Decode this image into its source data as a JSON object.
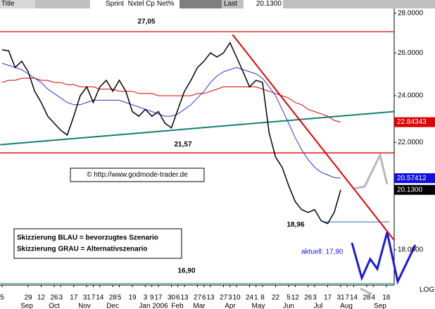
{
  "header": {
    "title": "Title",
    "symbol": "Sprint  Nxtel Cp",
    "net": "Net%",
    "last_label": "Last",
    "last_value": "20.1300"
  },
  "chart_data": {
    "type": "line",
    "log_scale": true,
    "grid": false,
    "categories": [
      "5",
      null,
      null,
      null,
      "29",
      null,
      "12",
      null,
      "26",
      "3",
      null,
      "17",
      null,
      "31",
      "7",
      "14",
      null,
      "28",
      "5",
      null,
      "19",
      null,
      "3",
      "9",
      "17",
      null,
      "30",
      "6",
      "13",
      null,
      "27",
      "6",
      "13",
      null,
      "27",
      "3",
      "10",
      null,
      "24",
      "1",
      "8",
      null,
      "22",
      null,
      "5",
      "12",
      null,
      "26",
      "3",
      null,
      "17",
      null,
      "31",
      "7",
      "14",
      null,
      "28",
      "4",
      null,
      "18"
    ],
    "months": [
      "Sep",
      "Oct",
      "Nov",
      "Dec",
      "Jan 2006",
      "Feb",
      "Mar",
      "Apr",
      "May",
      "Jun",
      "Jul",
      "Aug",
      "Sep"
    ],
    "ylim": [
      16.85,
      28.7
    ],
    "yticks": [
      {
        "value": 18,
        "label": "18.0000"
      },
      {
        "value": 22,
        "label": "22.0000"
      },
      {
        "value": 24,
        "label": "24.0000"
      },
      {
        "value": 26,
        "label": "26.0000"
      },
      {
        "value": 28,
        "label": "28.0000"
      }
    ],
    "series": [
      {
        "color": "#000000",
        "values": [
          26.15,
          26.1,
          25.3,
          25.6,
          25.1,
          24.2,
          23.7,
          23.1,
          22.8,
          22.5,
          22.3,
          23.1,
          24.0,
          24.4,
          23.7,
          24.4,
          24.7,
          24.2,
          24.7,
          24.2,
          23.3,
          23.1,
          23.4,
          23.1,
          23.3,
          22.8,
          22.6,
          23.4,
          24.2,
          24.7,
          25.3,
          25.6,
          26.0,
          25.8,
          26.0,
          26.5,
          25.8,
          25.1,
          24.4,
          24.7,
          24.6,
          22.4,
          21.4,
          21.0,
          20.3,
          19.7,
          19.4,
          19.3,
          19.4,
          19.0,
          18.9,
          19.3,
          20.13,
          null,
          null,
          null,
          null,
          null,
          null,
          null
        ]
      },
      {
        "color": "#3030d0",
        "values": [
          25.5,
          25.4,
          25.3,
          25.2,
          25.0,
          24.8,
          24.6,
          24.3,
          24.1,
          23.9,
          23.7,
          23.6,
          23.6,
          23.7,
          23.8,
          23.8,
          23.8,
          23.8,
          23.8,
          23.7,
          23.6,
          23.5,
          23.4,
          23.3,
          23.2,
          23.1,
          23.1,
          23.2,
          23.4,
          23.6,
          23.9,
          24.2,
          24.6,
          24.9,
          25.1,
          25.2,
          25.3,
          25.2,
          25.1,
          25.0,
          24.8,
          24.4,
          24.0,
          23.4,
          22.8,
          22.2,
          21.7,
          21.3,
          21.0,
          20.8,
          20.7,
          20.6,
          20.57412,
          null,
          null,
          null,
          null,
          null,
          null,
          null
        ]
      },
      {
        "color": "#d00000",
        "values": [
          24.6,
          24.7,
          24.7,
          24.8,
          24.8,
          24.8,
          24.7,
          24.7,
          24.6,
          24.6,
          24.5,
          24.5,
          24.4,
          24.4,
          24.4,
          24.3,
          24.3,
          24.3,
          24.2,
          24.2,
          24.2,
          24.1,
          24.1,
          24.1,
          24.0,
          24.0,
          24.0,
          24.0,
          24.0,
          24.0,
          24.1,
          24.1,
          24.2,
          24.3,
          24.4,
          24.4,
          24.4,
          24.4,
          24.4,
          24.4,
          24.3,
          24.2,
          24.1,
          24.0,
          23.9,
          23.7,
          23.6,
          23.4,
          23.3,
          23.2,
          23.1,
          22.92,
          22.84343,
          null,
          null,
          null,
          null,
          null,
          null,
          null
        ]
      }
    ],
    "levels": [
      {
        "value": 27.05,
        "label": "27,05",
        "color": "#e00000"
      },
      {
        "value": 21.57,
        "label": "21,57",
        "color": "#e00000"
      },
      {
        "value": 18.96,
        "label": "18,96",
        "color": "#2070c0",
        "x": [
          49.3,
          59.5
        ]
      },
      {
        "value": 16.9,
        "label": "16,90",
        "color": "#40a0a0"
      }
    ],
    "trendlines": [
      {
        "color": "#108070",
        "x": [
          -0.3,
          60.2
        ],
        "values": [
          21.9,
          23.3
        ]
      },
      {
        "color": "#e00000",
        "x": [
          35.4,
          60.2
        ],
        "values": [
          26.9,
          18.33
        ]
      }
    ],
    "price_markers": [
      {
        "value": 22.84343,
        "color": "#e00000"
      },
      {
        "value": 20.57412,
        "color": "#1010e0"
      },
      {
        "value": 20.13,
        "label": "20.1300",
        "color": "#000000"
      }
    ],
    "annotations": {
      "copyright": "© http://www.godmode-trader.de",
      "scenario_blue": "Skizzierung BLAU = bevorzugtes Szenario",
      "scenario_gray": "Skizzierung GRAU = Alternativszenario",
      "current": "aktuell: 17,90",
      "log": "LOG"
    }
  }
}
